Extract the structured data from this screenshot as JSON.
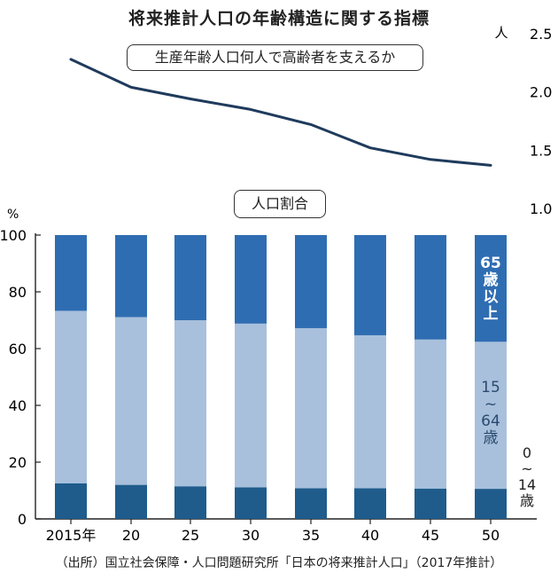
{
  "header": {
    "title": "将来推計人口の年齢構造に関する指標",
    "source": "（出所）国立社会保障・人口問題研究所「日本の将来推計人口」（2017年推計）"
  },
  "chart_data": [
    {
      "type": "line",
      "title": "生産年齢人口何人で高齢者を支えるか",
      "y_unit": "人",
      "x": [
        "2015",
        "2020",
        "2025",
        "2030",
        "2035",
        "2040",
        "2045",
        "2050"
      ],
      "series": [
        {
          "values": [
            2.28,
            2.04,
            1.94,
            1.85,
            1.72,
            1.52,
            1.42,
            1.37
          ]
        }
      ],
      "ylim": [
        1.0,
        2.5
      ],
      "yticks": [
        "1.0",
        "1.5",
        "2.0",
        "2.5"
      ],
      "color": "#1f3b5c"
    },
    {
      "type": "bar",
      "stacked": true,
      "title": "人口割合",
      "y_unit": "%",
      "categories": [
        "2015年",
        "20",
        "25",
        "30",
        "35",
        "40",
        "45",
        "50"
      ],
      "series": [
        {
          "name": "0~14歳",
          "values": [
            12.5,
            12.0,
            11.5,
            11.1,
            10.8,
            10.8,
            10.7,
            10.6
          ],
          "color": "#1f5c8c"
        },
        {
          "name": "15~64歳",
          "values": [
            60.8,
            59.1,
            58.5,
            57.7,
            56.4,
            53.9,
            52.5,
            51.8
          ],
          "color": "#a8c0dc"
        },
        {
          "name": "65歳以上",
          "values": [
            26.7,
            28.9,
            30.0,
            31.2,
            32.8,
            35.3,
            36.8,
            37.6
          ],
          "color": "#2f6db2"
        }
      ],
      "ylim": [
        0,
        100
      ],
      "yticks": [
        "0",
        "20",
        "40",
        "60",
        "80",
        "100"
      ],
      "series_labels": {
        "elderly": [
          "65",
          "歳",
          "以",
          "上"
        ],
        "working": [
          "15",
          "~",
          "64",
          "歳"
        ],
        "young": [
          "0",
          "~",
          "14",
          "歳"
        ]
      }
    }
  ]
}
